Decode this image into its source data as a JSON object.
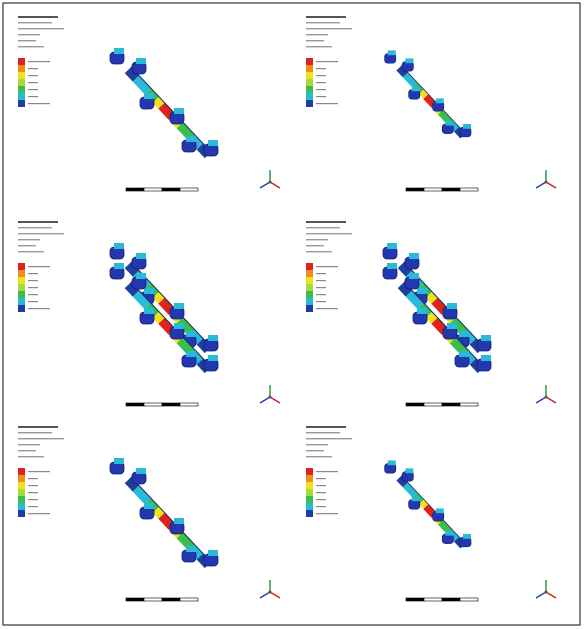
{
  "panels": [
    {
      "legend_colors": [
        "#e0221b",
        "#f28c1e",
        "#f2e21b",
        "#a6d93a",
        "#3bbf4a",
        "#29b9d9",
        "#1f3f9e"
      ]
    },
    {
      "legend_colors": [
        "#e0221b",
        "#f28c1e",
        "#f2e21b",
        "#a6d93a",
        "#3bbf4a",
        "#29b9d9",
        "#1f3f9e"
      ]
    },
    {
      "legend_colors": [
        "#e0221b",
        "#f28c1e",
        "#f2e21b",
        "#a6d93a",
        "#3bbf4a",
        "#29b9d9",
        "#1f3f9e"
      ]
    },
    {
      "legend_colors": [
        "#e0221b",
        "#f28c1e",
        "#f2e21b",
        "#a6d93a",
        "#3bbf4a",
        "#29b9d9",
        "#1f3f9e"
      ]
    },
    {
      "legend_colors": [
        "#e0221b",
        "#f28c1e",
        "#f2e21b",
        "#a6d93a",
        "#3bbf4a",
        "#29b9d9",
        "#1f3f9e"
      ]
    },
    {
      "legend_colors": [
        "#e0221b",
        "#f28c1e",
        "#f2e21b",
        "#a6d93a",
        "#3bbf4a",
        "#29b9d9",
        "#1f3f9e"
      ]
    }
  ]
}
